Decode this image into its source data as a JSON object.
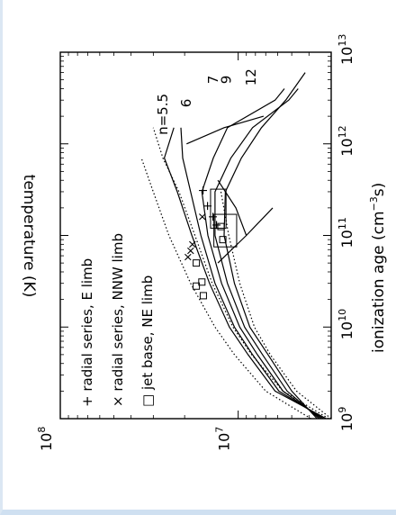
{
  "chart_data": {
    "type": "line",
    "orientation": "rotated-90-counterclockwise",
    "xlabel": "ionization age (cm",
    "xlabel_sup": "−3",
    "xlabel_tail": "s)",
    "ylabel": "temperature (K)",
    "x_scale": "log",
    "y_scale": "log",
    "xlim": [
      1000000000.0,
      10000000000000.0
    ],
    "ylim": [
      3000000.0,
      100000000.0
    ],
    "x_ticks": [
      {
        "value": 1000000000.0,
        "base": "10",
        "exp": "9"
      },
      {
        "value": 10000000000.0,
        "base": "10",
        "exp": "10"
      },
      {
        "value": 100000000000.0,
        "base": "10",
        "exp": "11"
      },
      {
        "value": 1000000000000.0,
        "base": "10",
        "exp": "12"
      },
      {
        "value": 10000000000000.0,
        "base": "10",
        "exp": "13"
      }
    ],
    "y_ticks": [
      {
        "value": 10000000.0,
        "base": "10",
        "exp": "7"
      },
      {
        "value": 100000000.0,
        "base": "10",
        "exp": "8"
      }
    ],
    "legend": {
      "placement": "bottom-left",
      "entries": [
        {
          "symbol": "+",
          "label": "radial series, E limb"
        },
        {
          "symbol": "×",
          "label": "radial series, NNW limb"
        },
        {
          "symbol": "□",
          "label": "jet base, NE limb"
        }
      ]
    },
    "series": [
      {
        "name": "n=5.5",
        "style": "solid",
        "x": [
          1000000000.0,
          2000000000.0,
          5000000000.0,
          10000000000.0,
          30000000000.0,
          100000000000.0,
          300000000000.0,
          700000000000.0,
          1500000000000.0
        ],
        "y": [
          3200000.0,
          6200000.0,
          8800000.0,
          11200000.0,
          14500000.0,
          18200000.0,
          22000000.0,
          26000000.0,
          23000000.0
        ]
      },
      {
        "name": "6",
        "style": "solid",
        "x": [
          1000000000.0,
          2000000000.0,
          5000000000.0,
          10000000000.0,
          30000000000.0,
          100000000000.0,
          300000000000.0,
          700000000000.0,
          1500000000000.0
        ],
        "y": [
          3300000.0,
          5900000.0,
          8300000.0,
          10500000.0,
          13500000.0,
          16200000.0,
          18500000.0,
          20500000.0,
          21000000.0
        ]
      },
      {
        "name": "7",
        "style": "solid",
        "x": [
          1000000000.0,
          2000000000.0,
          5000000000.0,
          10000000000.0,
          30000000000.0,
          100000000000.0,
          300000000000.0,
          700000000000.0,
          1500000000000.0,
          3000000000000.0,
          4000000000000.0
        ],
        "y": [
          3400000.0,
          5600000.0,
          7800000.0,
          9800000.0,
          12400000.0,
          14800000.0,
          16000000.0,
          13800000.0,
          11500000.0,
          6200000.0,
          5500000.0
        ]
      },
      {
        "name": "9",
        "style": "solid",
        "x": [
          1000000000.0,
          2000000000.0,
          5000000000.0,
          10000000000.0,
          30000000000.0,
          100000000000.0,
          300000000000.0,
          700000000000.0,
          1500000000000.0,
          3000000000000.0,
          4000000000000.0
        ],
        "y": [
          3500000.0,
          5300000.0,
          7300000.0,
          9200000.0,
          11500000.0,
          13500000.0,
          13500000.0,
          11000000.0,
          8300000.0,
          5200000.0,
          4600000.0
        ]
      },
      {
        "name": "12",
        "style": "solid",
        "x": [
          1000000000.0,
          2000000000.0,
          5000000000.0,
          10000000000.0,
          30000000000.0,
          100000000000.0,
          300000000000.0,
          700000000000.0,
          1500000000000.0,
          3000000000000.0,
          6000000000000.0
        ],
        "y": [
          3600000.0,
          5000000.0,
          6800000.0,
          8600000.0,
          10500000.0,
          12000000.0,
          11800000.0,
          9600000.0,
          7400000.0,
          5400000.0,
          4200000.0
        ]
      },
      {
        "name": "",
        "style": "solid",
        "x": [
          100000000000.0,
          200000000000.0,
          400000000000.0
        ],
        "y": [
          9000000.0,
          10300000.0,
          13000000.0
        ]
      },
      {
        "name": "",
        "style": "solid",
        "x": [
          50000000000.0,
          100000000000.0,
          200000000000.0
        ],
        "y": [
          13000000.0,
          9000000.0,
          6400000.0
        ]
      },
      {
        "name": "",
        "style": "solid",
        "x": [
          1000000000000.0,
          1500000000000.0,
          2000000000000.0
        ],
        "y": [
          19500000.0,
          12000000.0,
          7200000.0
        ]
      },
      {
        "name": "",
        "style": "dotted",
        "x": [
          1000000000.0,
          2000000000.0,
          5000000000.0,
          10000000000.0,
          30000000000.0,
          100000000000.0,
          300000000000.0,
          700000000000.0
        ],
        "y": [
          3900000.0,
          7000000.0,
          10500000.0,
          13500000.0,
          18500000.0,
          24500000.0,
          30000000.0,
          35000000.0
        ]
      },
      {
        "name": "",
        "style": "dotted",
        "x": [
          1000000000.0,
          2000000000.0,
          5000000000.0,
          10000000000.0,
          30000000000.0,
          100000000000.0,
          300000000000.0,
          700000000000.0,
          1500000000000.0
        ],
        "y": [
          3100000.0,
          5600000.0,
          8400000.0,
          10700000.0,
          14000000.0,
          17500000.0,
          21500000.0,
          26500000.0,
          30000000.0
        ]
      },
      {
        "name": "",
        "style": "dotted",
        "x": [
          1000000000.0,
          2000000000.0,
          5000000000.0,
          10000000000.0,
          30000000000.0,
          100000000000.0,
          300000000000.0
        ],
        "y": [
          3000000.0,
          4700000.0,
          6600000.0,
          8100000.0,
          9800000.0,
          11300000.0,
          12500000.0
        ]
      }
    ],
    "points": {
      "E_limb": [
        {
          "x": 130000000000.0,
          "y": 13200000.0
        },
        {
          "x": 310000000000.0,
          "y": 15700000.0
        },
        {
          "x": 210000000000.0,
          "y": 14800000.0
        },
        {
          "x": 160000000000.0,
          "y": 13800000.0
        }
      ],
      "NNW_limb": [
        {
          "x": 58000000000.0,
          "y": 19000000.0
        },
        {
          "x": 68000000000.0,
          "y": 18400000.0
        },
        {
          "x": 80000000000.0,
          "y": 17900000.0
        },
        {
          "x": 160000000000.0,
          "y": 15800000.0
        }
      ],
      "NE_limb": [
        {
          "x": 50000000000.0,
          "y": 17200000.0
        },
        {
          "x": 31000000000.0,
          "y": 16000000.0
        },
        {
          "x": 28000000000.0,
          "y": 17200000.0
        },
        {
          "x": 22000000000.0,
          "y": 15700000.0
        },
        {
          "x": 125000000000.0,
          "y": 12500000.0
        },
        {
          "x": 90000000000.0,
          "y": 12200000.0
        }
      ]
    },
    "boxes": [
      {
        "x": [
          75000000000.0,
          170000000000.0
        ],
        "y": [
          10200000.0,
          13700000.0
        ]
      },
      {
        "x": [
          120000000000.0,
          320000000000.0
        ],
        "y": [
          11700000.0,
          14300000.0
        ]
      }
    ],
    "curve_labels": [
      {
        "text": "n=5.5",
        "x": 1250000000000.0,
        "y": 25000000.0
      },
      {
        "text": "6",
        "x": 2500000000000.0,
        "y": 18500000.0
      },
      {
        "text": "7",
        "x": 4500000000000.0,
        "y": 13000000.0
      },
      {
        "text": "9",
        "x": 4500000000000.0,
        "y": 11000000.0
      },
      {
        "text": "12",
        "x": 4300000000000.0,
        "y": 8000000.0
      }
    ]
  }
}
